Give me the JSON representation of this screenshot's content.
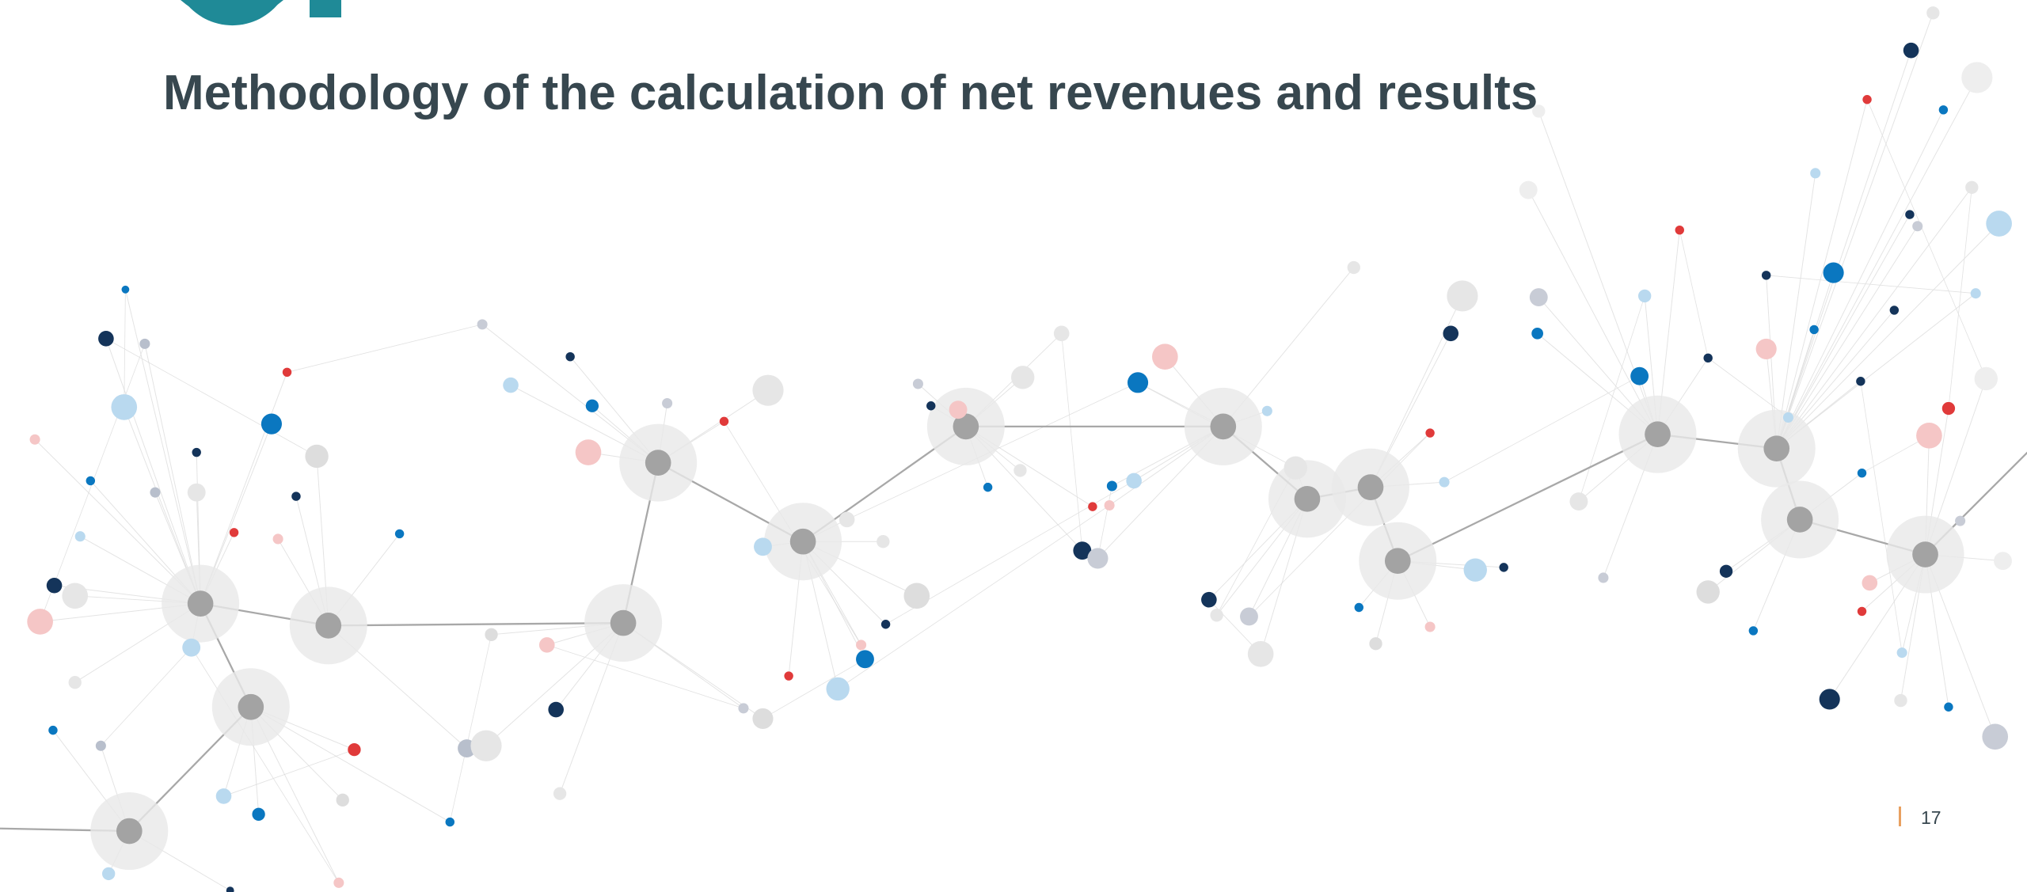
{
  "header": {
    "title": "Methodology of the calculation of net revenues and results"
  },
  "footer": {
    "page_number": "17"
  }
}
